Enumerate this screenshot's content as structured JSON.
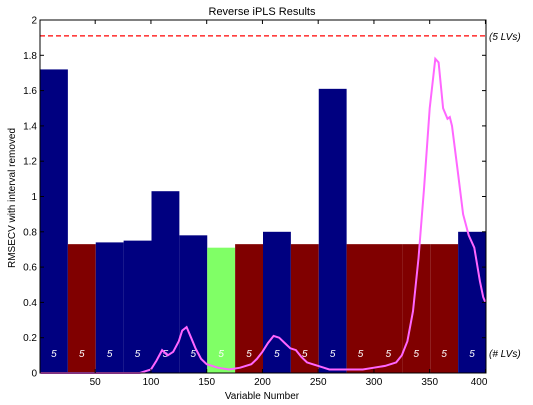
{
  "chart_data": {
    "type": "bar",
    "title": "Reverse iPLS Results",
    "xlabel": "Variable Number",
    "ylabel": "RMSECV with interval removed",
    "xlim": [
      1,
      400
    ],
    "ylim": [
      0,
      2
    ],
    "xticks": [
      50,
      100,
      150,
      200,
      250,
      300,
      350,
      400
    ],
    "yticks": [
      0,
      0.2,
      0.4,
      0.6,
      0.8,
      1,
      1.2,
      1.4,
      1.6,
      1.8,
      2
    ],
    "grid": false,
    "interval_width": 25,
    "intervals": [
      {
        "start": 1,
        "end": 25,
        "value": 1.72,
        "lvs": "5",
        "color": "#000080"
      },
      {
        "start": 26,
        "end": 50,
        "value": 0.73,
        "lvs": "5",
        "color": "#800000"
      },
      {
        "start": 51,
        "end": 75,
        "value": 0.74,
        "lvs": "5",
        "color": "#000080"
      },
      {
        "start": 76,
        "end": 100,
        "value": 0.75,
        "lvs": "5",
        "color": "#000080"
      },
      {
        "start": 101,
        "end": 125,
        "value": 1.03,
        "lvs": "5",
        "color": "#000080"
      },
      {
        "start": 126,
        "end": 150,
        "value": 0.78,
        "lvs": "5",
        "color": "#000080"
      },
      {
        "start": 151,
        "end": 175,
        "value": 0.71,
        "lvs": "5",
        "color": "#80ff66"
      },
      {
        "start": 176,
        "end": 200,
        "value": 0.73,
        "lvs": "5",
        "color": "#800000"
      },
      {
        "start": 201,
        "end": 225,
        "value": 0.8,
        "lvs": "5",
        "color": "#000080"
      },
      {
        "start": 226,
        "end": 250,
        "value": 0.73,
        "lvs": "5",
        "color": "#800000"
      },
      {
        "start": 251,
        "end": 275,
        "value": 1.61,
        "lvs": "5",
        "color": "#000080"
      },
      {
        "start": 276,
        "end": 300,
        "value": 0.73,
        "lvs": "5",
        "color": "#800000"
      },
      {
        "start": 301,
        "end": 325,
        "value": 0.73,
        "lvs": "5",
        "color": "#800000"
      },
      {
        "start": 326,
        "end": 350,
        "value": 0.73,
        "lvs": "5",
        "color": "#800000"
      },
      {
        "start": 351,
        "end": 375,
        "value": 0.73,
        "lvs": "5",
        "color": "#800000"
      },
      {
        "start": 376,
        "end": 400,
        "value": 0.8,
        "lvs": "5",
        "color": "#000080"
      }
    ],
    "reference_line": {
      "value": 1.91,
      "label": "(5 LVs)",
      "color": "#ff0000",
      "style": "dashed"
    },
    "lv_axis_label": "(# LVs)",
    "spectrum": {
      "color": "#ff66ff",
      "x": [
        1,
        10,
        20,
        30,
        40,
        50,
        60,
        70,
        80,
        90,
        95,
        100,
        105,
        110,
        115,
        120,
        125,
        128,
        132,
        136,
        140,
        145,
        150,
        155,
        160,
        170,
        180,
        190,
        195,
        200,
        205,
        210,
        215,
        220,
        225,
        230,
        235,
        240,
        245,
        250,
        255,
        260,
        270,
        280,
        290,
        300,
        310,
        320,
        325,
        330,
        335,
        340,
        345,
        350,
        355,
        358,
        362,
        366,
        368,
        370,
        375,
        380,
        385,
        390,
        395,
        398,
        400
      ],
      "y": [
        0.0,
        0.0,
        0.0,
        0.0,
        0.0,
        0.0,
        0.0,
        0.0,
        0.0,
        0.0,
        0.01,
        0.02,
        0.07,
        0.13,
        0.1,
        0.12,
        0.18,
        0.24,
        0.26,
        0.2,
        0.14,
        0.08,
        0.05,
        0.04,
        0.03,
        0.02,
        0.03,
        0.05,
        0.08,
        0.12,
        0.17,
        0.21,
        0.2,
        0.17,
        0.14,
        0.13,
        0.09,
        0.06,
        0.05,
        0.04,
        0.03,
        0.02,
        0.02,
        0.02,
        0.02,
        0.03,
        0.04,
        0.06,
        0.1,
        0.18,
        0.35,
        0.65,
        1.05,
        1.5,
        1.78,
        1.76,
        1.5,
        1.44,
        1.45,
        1.4,
        1.15,
        0.9,
        0.78,
        0.71,
        0.52,
        0.43,
        0.4
      ]
    }
  }
}
